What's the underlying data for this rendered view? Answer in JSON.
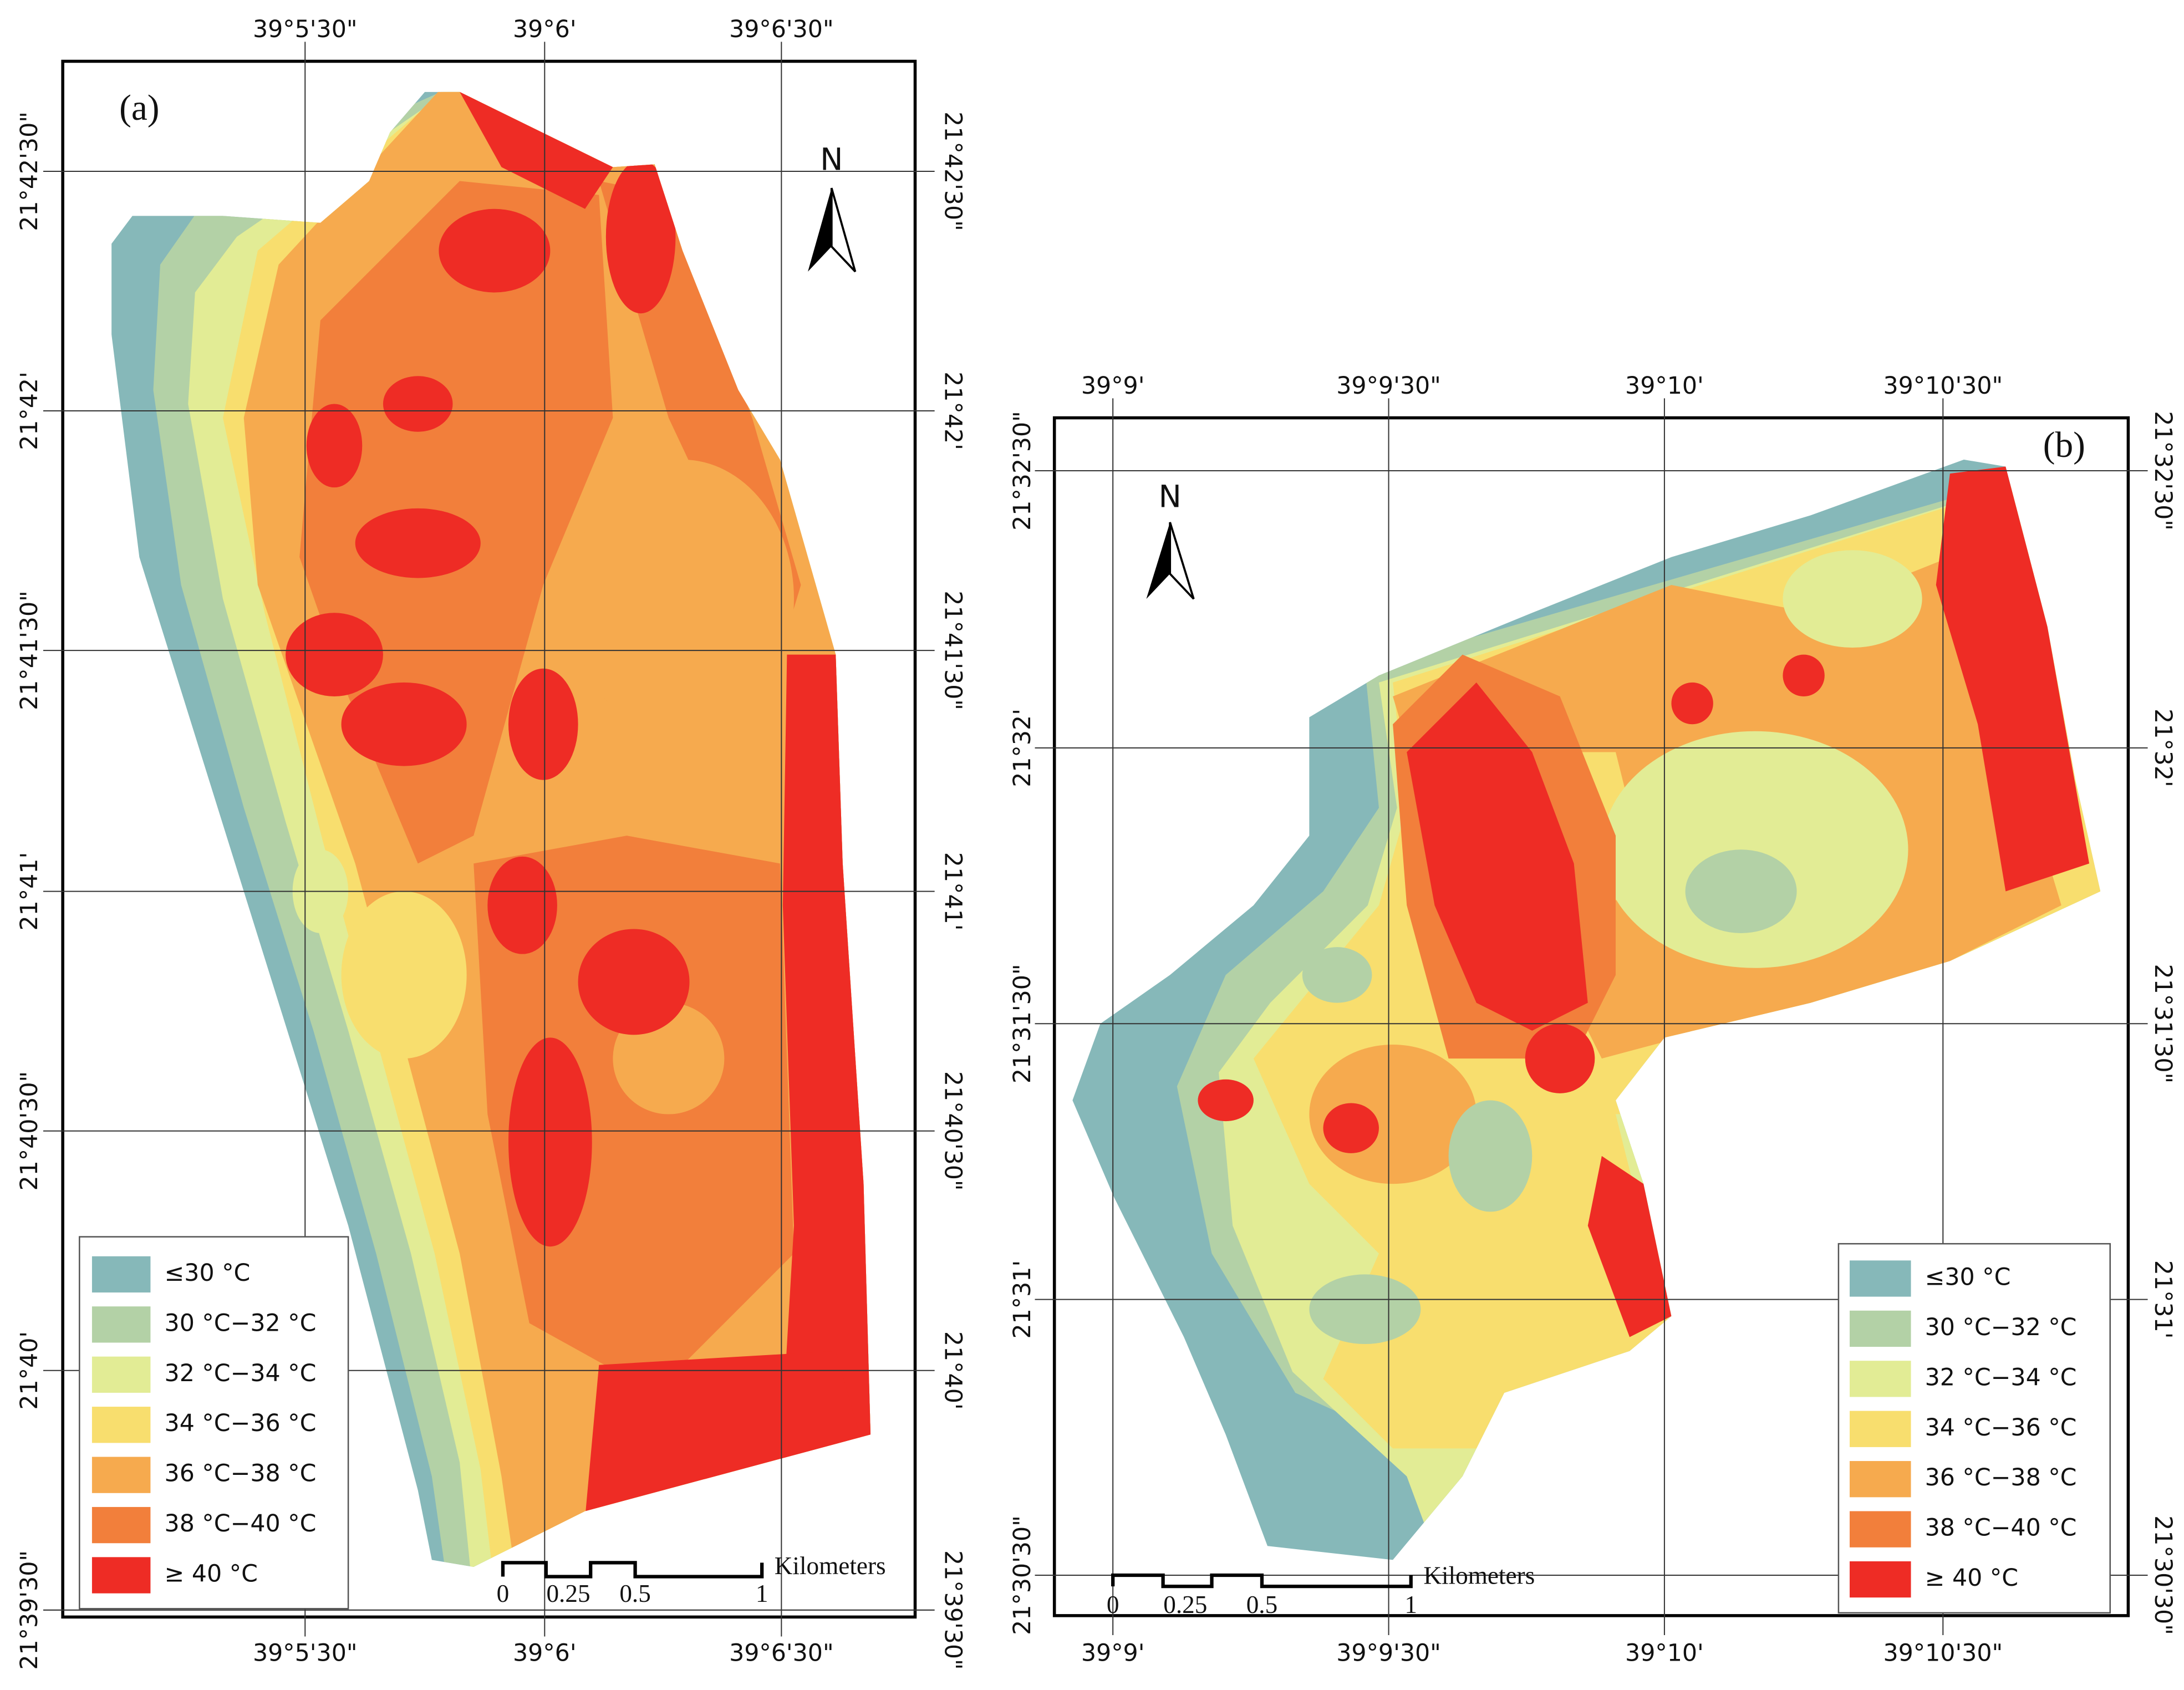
{
  "panels": [
    {
      "label": "(a)",
      "top_ticks": [
        "39°5'30\"",
        "39°6'",
        "39°6'30\""
      ],
      "side_ticks": [
        "21°42'30\"",
        "21°42'",
        "21°41'30\"",
        "21°41'",
        "21°40'30\"",
        "21°40'",
        "21°39'30\""
      ],
      "north": "N",
      "scale_labels": [
        "0",
        "0.25",
        "0.5",
        "1"
      ],
      "scale_unit": "Kilometers",
      "legend": [
        {
          "label": "≤30 °C",
          "color": "#86b8b9"
        },
        {
          "label": "30 °C−32 °C",
          "color": "#b3d1a6"
        },
        {
          "label": "32 °C−34 °C",
          "color": "#e2ec95"
        },
        {
          "label": "34 °C−36 °C",
          "color": "#f8de6e"
        },
        {
          "label": "36 °C−38 °C",
          "color": "#f6aa4e"
        },
        {
          "label": "38 °C−40 °C",
          "color": "#f27f3b"
        },
        {
          "label": "≥ 40 °C",
          "color": "#ee2c25"
        }
      ]
    },
    {
      "label": "(b)",
      "top_ticks": [
        "39°9'",
        "39°9'30\"",
        "39°10'",
        "39°10'30\""
      ],
      "side_ticks": [
        "21°32'30\"",
        "21°32'",
        "21°31'30\"",
        "21°31'",
        "21°30'30\""
      ],
      "north": "N",
      "scale_labels": [
        "0",
        "0.25",
        "0.5",
        "1"
      ],
      "scale_unit": "Kilometers",
      "legend": [
        {
          "label": "≤30 °C",
          "color": "#86b8b9"
        },
        {
          "label": "30 °C−32 °C",
          "color": "#b3d1a6"
        },
        {
          "label": "32 °C−34 °C",
          "color": "#e2ec95"
        },
        {
          "label": "34 °C−36 °C",
          "color": "#f8de6e"
        },
        {
          "label": "36 °C−38 °C",
          "color": "#f6aa4e"
        },
        {
          "label": "38 °C−40 °C",
          "color": "#f27f3b"
        },
        {
          "label": "≥ 40 °C",
          "color": "#ee2c25"
        }
      ]
    }
  ]
}
